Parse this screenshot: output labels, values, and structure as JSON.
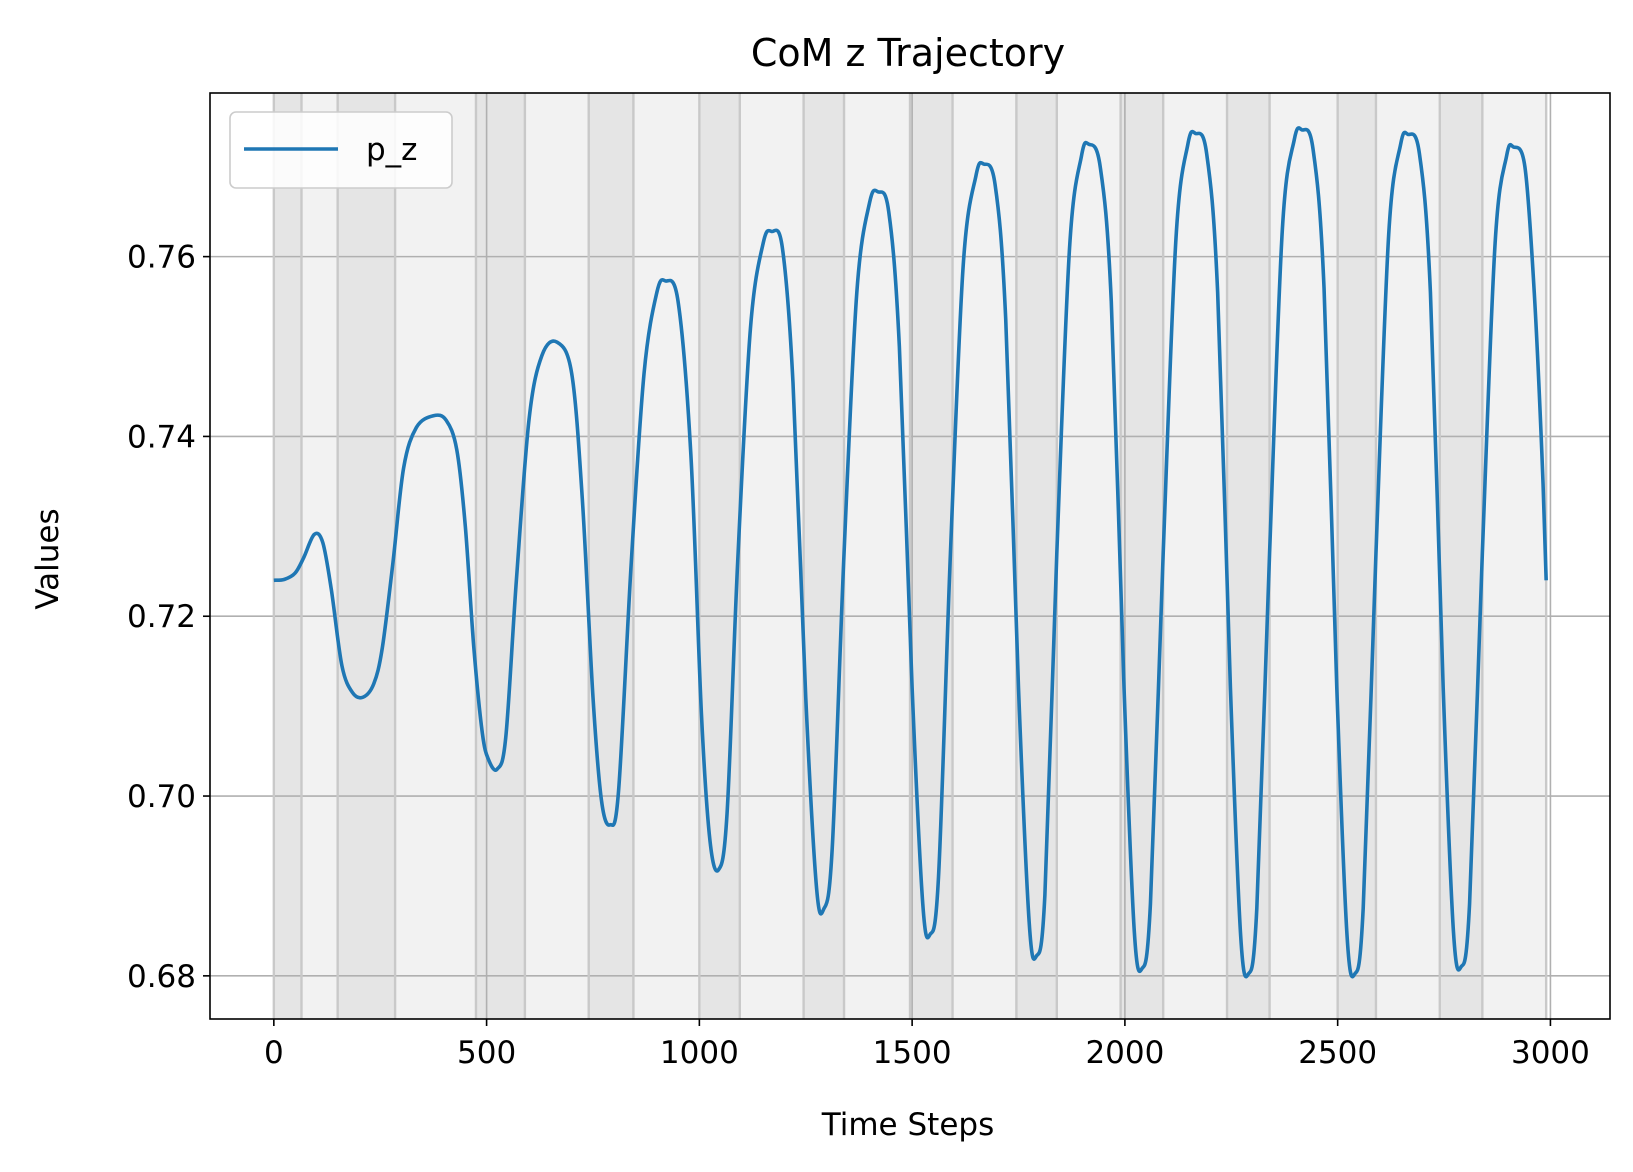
{
  "chart_data": {
    "type": "line",
    "title": "CoM z Trajectory",
    "xlabel": "Time Steps",
    "ylabel": "Values",
    "xlim": [
      -150,
      3140
    ],
    "ylim": [
      0.6752,
      0.7782
    ],
    "xticks": [
      0,
      500,
      1000,
      1500,
      2000,
      2500,
      3000
    ],
    "yticks": [
      0.68,
      0.7,
      0.72,
      0.74,
      0.76
    ],
    "xtick_labels": [
      "0",
      "500",
      "1000",
      "1500",
      "2000",
      "2500",
      "3000"
    ],
    "ytick_labels": [
      "0.68",
      "0.70",
      "0.72",
      "0.74",
      "0.76"
    ],
    "grid": true,
    "legend_position": "top-left",
    "line_color": "#1f77b4",
    "band_colors": {
      "light": "#f2f2f2",
      "dark": "#e5e5e5",
      "boundary": "#c9c9c9"
    },
    "phase_bands": [
      {
        "x0": 0,
        "x1": 65,
        "shade": "dark"
      },
      {
        "x0": 65,
        "x1": 150,
        "shade": "light"
      },
      {
        "x0": 150,
        "x1": 285,
        "shade": "dark"
      },
      {
        "x0": 285,
        "x1": 475,
        "shade": "light"
      },
      {
        "x0": 475,
        "x1": 590,
        "shade": "dark"
      },
      {
        "x0": 590,
        "x1": 740,
        "shade": "light"
      },
      {
        "x0": 740,
        "x1": 845,
        "shade": "dark"
      },
      {
        "x0": 845,
        "x1": 1000,
        "shade": "light"
      },
      {
        "x0": 1000,
        "x1": 1095,
        "shade": "dark"
      },
      {
        "x0": 1095,
        "x1": 1245,
        "shade": "light"
      },
      {
        "x0": 1245,
        "x1": 1340,
        "shade": "dark"
      },
      {
        "x0": 1340,
        "x1": 1495,
        "shade": "light"
      },
      {
        "x0": 1495,
        "x1": 1595,
        "shade": "dark"
      },
      {
        "x0": 1595,
        "x1": 1745,
        "shade": "light"
      },
      {
        "x0": 1745,
        "x1": 1840,
        "shade": "dark"
      },
      {
        "x0": 1840,
        "x1": 1990,
        "shade": "light"
      },
      {
        "x0": 1990,
        "x1": 2090,
        "shade": "dark"
      },
      {
        "x0": 2090,
        "x1": 2240,
        "shade": "light"
      },
      {
        "x0": 2240,
        "x1": 2340,
        "shade": "dark"
      },
      {
        "x0": 2340,
        "x1": 2500,
        "shade": "light"
      },
      {
        "x0": 2500,
        "x1": 2590,
        "shade": "dark"
      },
      {
        "x0": 2590,
        "x1": 2740,
        "shade": "light"
      },
      {
        "x0": 2740,
        "x1": 2840,
        "shade": "dark"
      },
      {
        "x0": 2840,
        "x1": 2990,
        "shade": "light"
      }
    ],
    "series": [
      {
        "name": "p_z",
        "points": [
          [
            0,
            0.724
          ],
          [
            25,
            0.7241
          ],
          [
            50,
            0.7248
          ],
          [
            70,
            0.7265
          ],
          [
            95,
            0.7291
          ],
          [
            115,
            0.7282
          ],
          [
            135,
            0.723
          ],
          [
            160,
            0.7145
          ],
          [
            185,
            0.7115
          ],
          [
            210,
            0.711
          ],
          [
            235,
            0.7125
          ],
          [
            255,
            0.7165
          ],
          [
            280,
            0.726
          ],
          [
            305,
            0.7365
          ],
          [
            335,
            0.741
          ],
          [
            375,
            0.7423
          ],
          [
            405,
            0.7418
          ],
          [
            430,
            0.7385
          ],
          [
            450,
            0.73
          ],
          [
            470,
            0.7165
          ],
          [
            490,
            0.707
          ],
          [
            505,
            0.704
          ],
          [
            525,
            0.703
          ],
          [
            545,
            0.7065
          ],
          [
            570,
            0.724
          ],
          [
            600,
            0.742
          ],
          [
            630,
            0.749
          ],
          [
            665,
            0.7505
          ],
          [
            700,
            0.747
          ],
          [
            725,
            0.733
          ],
          [
            750,
            0.711
          ],
          [
            770,
            0.6995
          ],
          [
            790,
            0.6968
          ],
          [
            810,
            0.7005
          ],
          [
            840,
            0.726
          ],
          [
            870,
            0.747
          ],
          [
            900,
            0.756
          ],
          [
            920,
            0.7573
          ],
          [
            950,
            0.755
          ],
          [
            980,
            0.738
          ],
          [
            1005,
            0.709
          ],
          [
            1025,
            0.695
          ],
          [
            1045,
            0.6918
          ],
          [
            1065,
            0.698
          ],
          [
            1090,
            0.726
          ],
          [
            1120,
            0.752
          ],
          [
            1150,
            0.7615
          ],
          [
            1170,
            0.7628
          ],
          [
            1195,
            0.761
          ],
          [
            1220,
            0.746
          ],
          [
            1250,
            0.711
          ],
          [
            1275,
            0.69
          ],
          [
            1292,
            0.6874
          ],
          [
            1312,
            0.694
          ],
          [
            1340,
            0.727
          ],
          [
            1370,
            0.756
          ],
          [
            1400,
            0.766
          ],
          [
            1420,
            0.7672
          ],
          [
            1445,
            0.765
          ],
          [
            1470,
            0.75
          ],
          [
            1500,
            0.712
          ],
          [
            1525,
            0.688
          ],
          [
            1542,
            0.6846
          ],
          [
            1562,
            0.691
          ],
          [
            1590,
            0.727
          ],
          [
            1620,
            0.759
          ],
          [
            1650,
            0.769
          ],
          [
            1668,
            0.7703
          ],
          [
            1695,
            0.768
          ],
          [
            1720,
            0.753
          ],
          [
            1750,
            0.712
          ],
          [
            1775,
            0.686
          ],
          [
            1792,
            0.6822
          ],
          [
            1812,
            0.689
          ],
          [
            1840,
            0.727
          ],
          [
            1870,
            0.761
          ],
          [
            1898,
            0.7712
          ],
          [
            1915,
            0.7725
          ],
          [
            1942,
            0.77
          ],
          [
            1968,
            0.755
          ],
          [
            1998,
            0.712
          ],
          [
            2022,
            0.685
          ],
          [
            2040,
            0.6808
          ],
          [
            2060,
            0.688
          ],
          [
            2090,
            0.727
          ],
          [
            2120,
            0.762
          ],
          [
            2148,
            0.7725
          ],
          [
            2166,
            0.7737
          ],
          [
            2192,
            0.7715
          ],
          [
            2218,
            0.756
          ],
          [
            2248,
            0.712
          ],
          [
            2272,
            0.6845
          ],
          [
            2290,
            0.6802
          ],
          [
            2310,
            0.6875
          ],
          [
            2340,
            0.727
          ],
          [
            2370,
            0.763
          ],
          [
            2398,
            0.773
          ],
          [
            2416,
            0.7741
          ],
          [
            2442,
            0.772
          ],
          [
            2468,
            0.7565
          ],
          [
            2498,
            0.712
          ],
          [
            2522,
            0.6845
          ],
          [
            2540,
            0.6802
          ],
          [
            2560,
            0.6875
          ],
          [
            2590,
            0.727
          ],
          [
            2620,
            0.7625
          ],
          [
            2648,
            0.7725
          ],
          [
            2665,
            0.7736
          ],
          [
            2692,
            0.7715
          ],
          [
            2718,
            0.756
          ],
          [
            2748,
            0.712
          ],
          [
            2772,
            0.685
          ],
          [
            2790,
            0.681
          ],
          [
            2810,
            0.688
          ],
          [
            2840,
            0.727
          ],
          [
            2870,
            0.7615
          ],
          [
            2897,
            0.7712
          ],
          [
            2913,
            0.7722
          ],
          [
            2940,
            0.77
          ],
          [
            2962,
            0.756
          ],
          [
            2980,
            0.738
          ],
          [
            2990,
            0.724
          ]
        ]
      }
    ]
  }
}
